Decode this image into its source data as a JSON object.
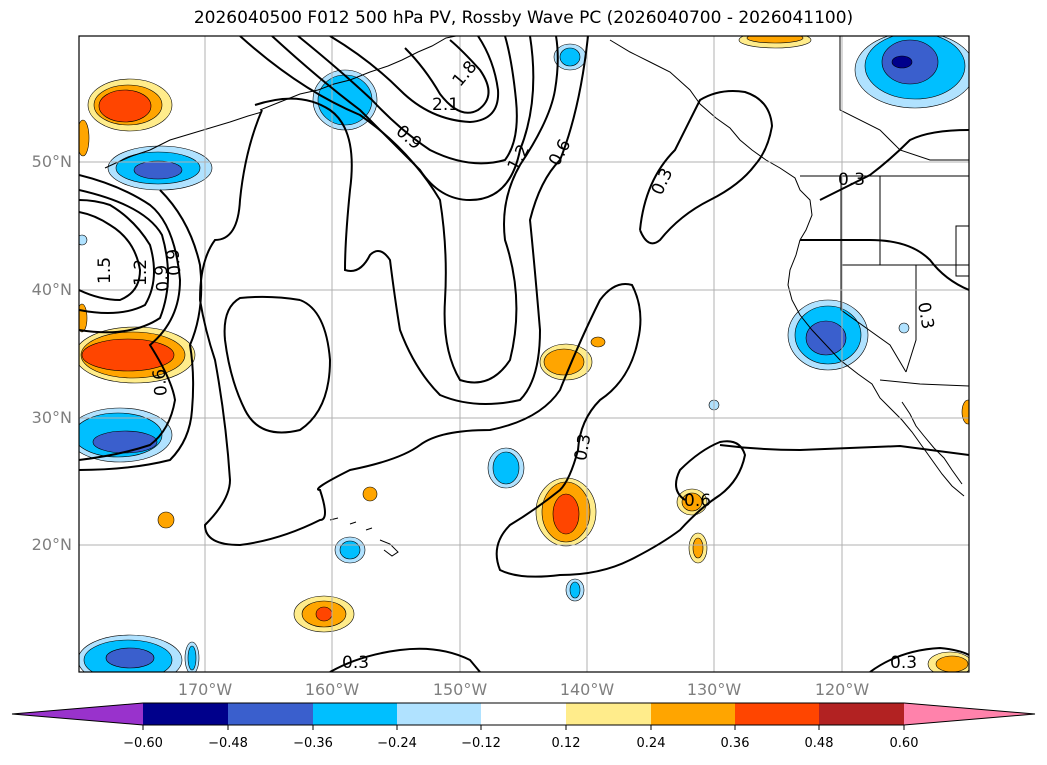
{
  "title": "2026040500 F012 500 hPa PV, Rossby Wave PC (2026040700 - 2026041100)",
  "latitude_labels": [
    "50°N",
    "40°N",
    "30°N",
    "20°N"
  ],
  "longitude_labels": [
    "170°W",
    "160°W",
    "150°W",
    "140°W",
    "130°W",
    "120°W"
  ],
  "contour_labels": [
    "2.1",
    "1.8",
    "1.5",
    "1.2",
    "1.2",
    "0.9",
    "0.9",
    "0.9",
    "0.6",
    "0.6",
    "0.6",
    "0.3",
    "0.3",
    "0.3",
    "0.3",
    "0.3",
    "0.3",
    "1.5",
    "1.2",
    "0.9"
  ],
  "colorbar": {
    "ticks": [
      "−0.60",
      "−0.48",
      "−0.36",
      "−0.24",
      "−0.12",
      "0.12",
      "0.24",
      "0.36",
      "0.48",
      "0.60"
    ],
    "colors": [
      "#9932cc",
      "#00008b",
      "#3a5fcd",
      "#00bfff",
      "#b0e2ff",
      "#ffffff",
      "#ffec8b",
      "#ffa500",
      "#ff4500",
      "#b22222",
      "#ff82ab"
    ]
  },
  "shading_colors": {
    "neg_light": "#b0e2ff",
    "neg_mid": "#00bfff",
    "neg_strong": "#3a5fcd",
    "neg_max": "#00008b",
    "pos_light": "#ffec8b",
    "pos_mid": "#ffa500",
    "pos_strong": "#ff4500"
  }
}
